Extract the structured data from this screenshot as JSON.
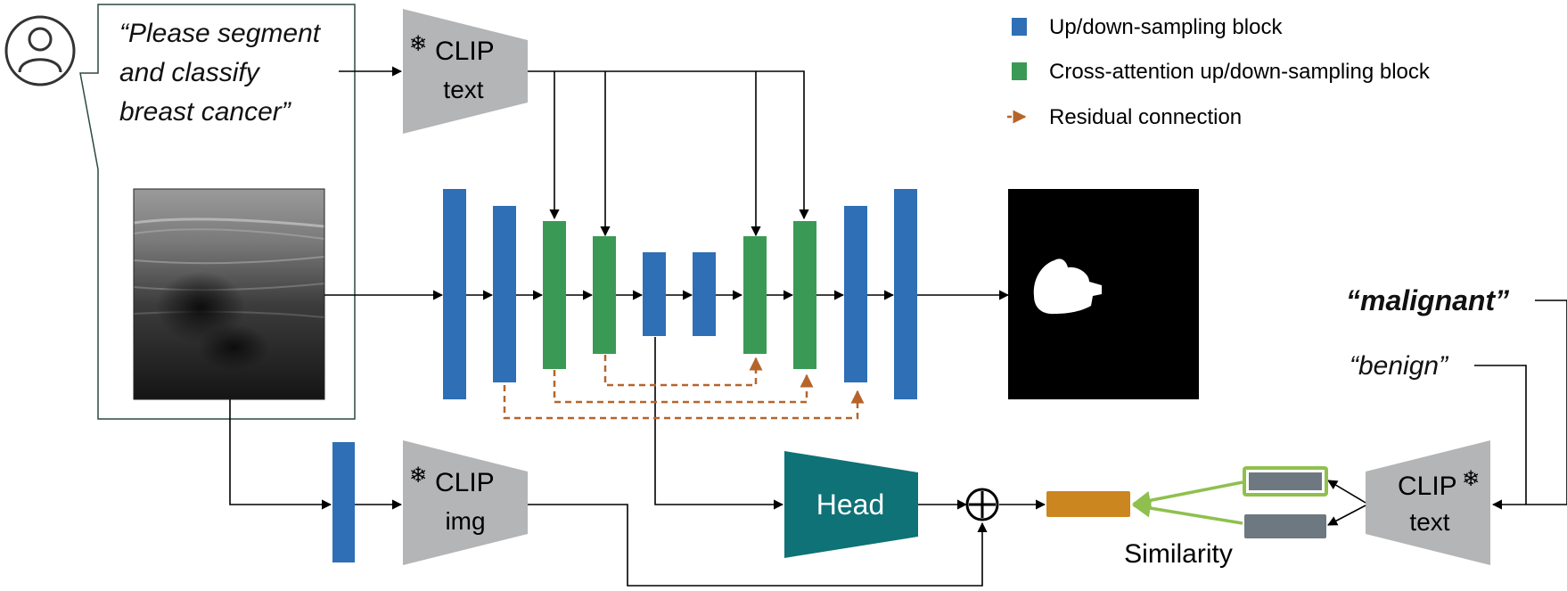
{
  "prompt": {
    "lines": [
      "“Please segment",
      "and classify",
      "breast cancer”"
    ]
  },
  "encoders": {
    "text_top": {
      "frozen_glyph": "❄",
      "line1": "CLIP",
      "line2": "text"
    },
    "img": {
      "frozen_glyph": "❄",
      "line1": "CLIP",
      "line2": "img"
    },
    "text_right": {
      "frozen_glyph": "❄",
      "line1": "CLIP",
      "line2": "text"
    }
  },
  "head": {
    "label": "Head"
  },
  "similarity": {
    "label": "Similarity"
  },
  "classes": {
    "malignant": "“malignant”",
    "benign": "“benign”"
  },
  "legend": {
    "items": [
      {
        "label": "Up/down-sampling block",
        "color": "#2e6fb5"
      },
      {
        "label": "Cross-attention up/down-sampling block",
        "color": "#3a9a55"
      },
      {
        "label": "Residual connection",
        "color": "#b5652a"
      }
    ]
  },
  "colors": {
    "sampling_block": "#2e6fb5",
    "cross_attention_block": "#3a9a55",
    "residual": "#b5652a",
    "clip_gray": "#b3b5b6",
    "head_teal": "#0e7276",
    "fused_orange": "#cc8620",
    "embedding_gray": "#6e7880",
    "highlight_green": "#8fc04e",
    "user_icon": "#333333"
  },
  "icons": {
    "user": "user-icon",
    "snowflake": "snowflake-icon",
    "sum": "circled-plus-icon",
    "ultrasound": "ultrasound-image",
    "mask": "segmentation-mask"
  }
}
